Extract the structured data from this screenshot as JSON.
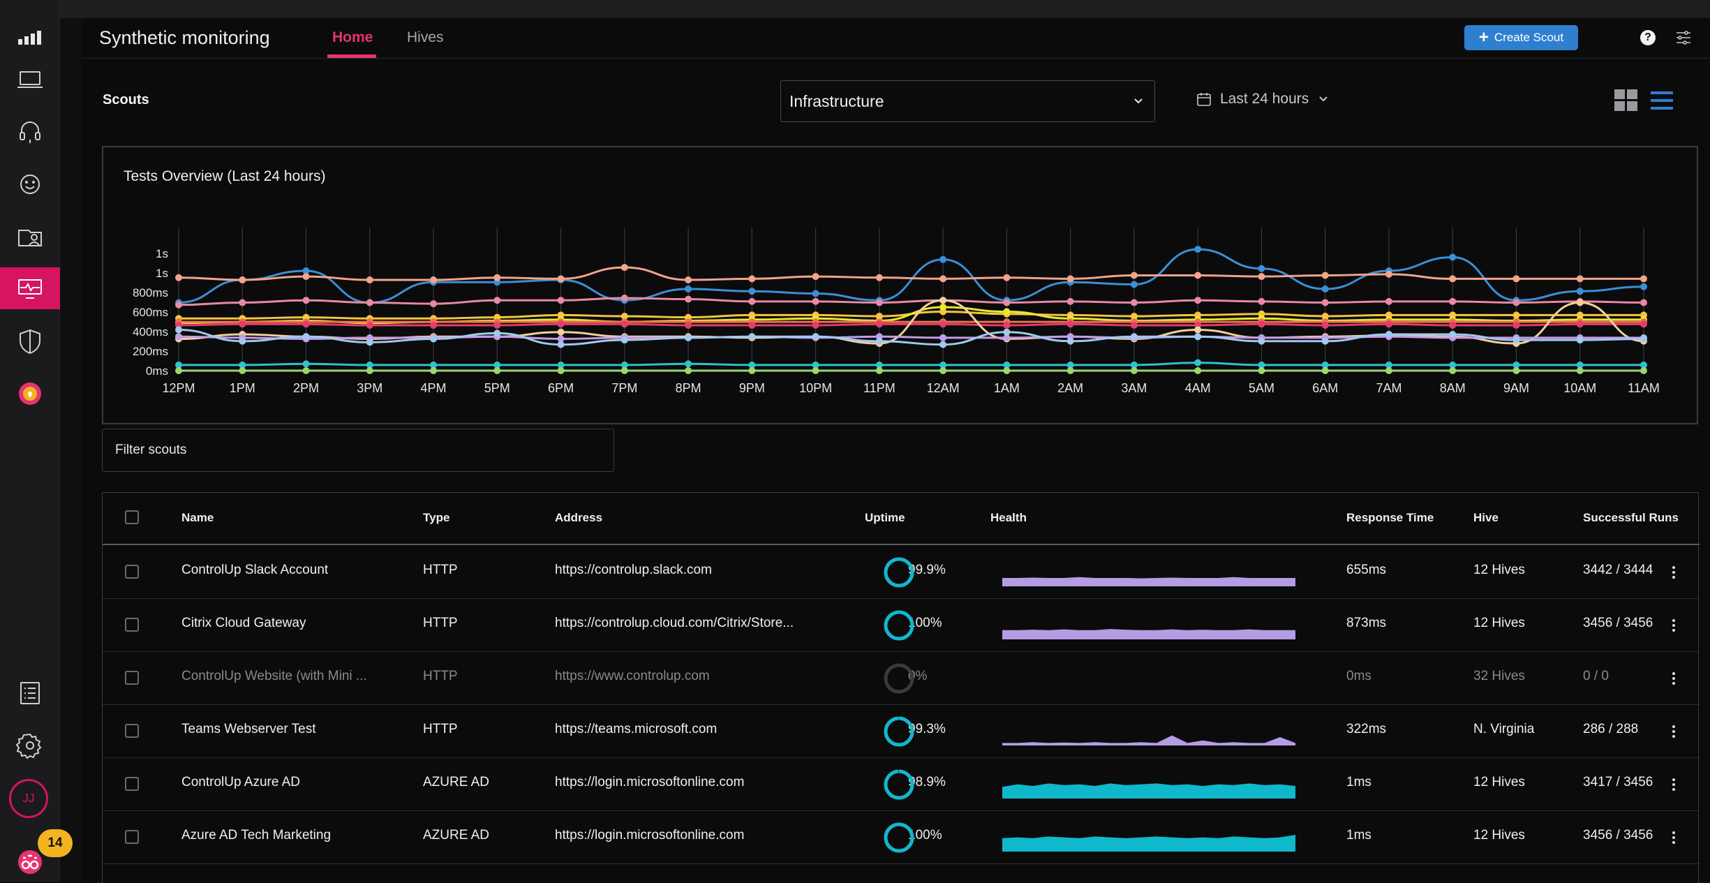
{
  "app": {
    "title": "Synthetic monitoring",
    "tabs": [
      {
        "label": "Home",
        "active": true
      },
      {
        "label": "Hives",
        "active": false
      }
    ],
    "create_label": "Create Scout",
    "help_label": "?"
  },
  "sidebar": {
    "items": [
      "bar-chart-icon",
      "laptop-icon",
      "headset-icon",
      "smiley-icon",
      "user-card-icon",
      "monitor-pulse-icon",
      "shield-icon",
      "lightbulb-icon",
      "list-doc-icon",
      "gear-icon"
    ],
    "active_item": "monitor-pulse-icon",
    "avatar_initials": "JJ",
    "notification_count": "14"
  },
  "toolbar": {
    "section_label": "Scouts",
    "selected_group": "Infrastructure",
    "time_range": "Last 24 hours"
  },
  "chart_data": {
    "type": "line",
    "title": "Tests Overview (Last 24 hours)",
    "x": [
      "12PM",
      "1PM",
      "2PM",
      "3PM",
      "4PM",
      "5PM",
      "6PM",
      "7PM",
      "8PM",
      "9PM",
      "10PM",
      "11PM",
      "12AM",
      "1AM",
      "2AM",
      "3AM",
      "4AM",
      "5AM",
      "6AM",
      "7AM",
      "8AM",
      "9AM",
      "10AM",
      "11AM"
    ],
    "y_tick_labels": [
      "0ms",
      "200ms",
      "400ms",
      "600ms",
      "800ms",
      "1s",
      "1s"
    ],
    "ylim": [
      0,
      1200
    ],
    "grid": "vertical",
    "series": [
      {
        "color": "#3b8fd6",
        "values": [
          600,
          800,
          880,
          600,
          780,
          780,
          800,
          620,
          720,
          700,
          680,
          620,
          980,
          620,
          780,
          760,
          1070,
          900,
          720,
          880,
          1000,
          620,
          700,
          740
        ]
      },
      {
        "color": "#f3a48a",
        "values": [
          820,
          800,
          830,
          800,
          800,
          820,
          810,
          910,
          800,
          810,
          830,
          820,
          810,
          820,
          810,
          840,
          840,
          830,
          840,
          850,
          810,
          810,
          810,
          810
        ]
      },
      {
        "color": "#e98aa2",
        "values": [
          580,
          600,
          620,
          600,
          590,
          620,
          620,
          640,
          630,
          610,
          610,
          600,
          620,
          600,
          610,
          600,
          620,
          610,
          600,
          610,
          610,
          600,
          610,
          600
        ]
      },
      {
        "color": "#f5c540",
        "values": [
          460,
          460,
          470,
          460,
          460,
          470,
          490,
          480,
          470,
          490,
          490,
          480,
          520,
          500,
          490,
          480,
          490,
          500,
          480,
          490,
          490,
          490,
          490,
          490
        ]
      },
      {
        "color": "#e8e832",
        "values": [
          420,
          430,
          440,
          420,
          430,
          440,
          450,
          430,
          440,
          450,
          460,
          440,
          560,
          520,
          460,
          440,
          450,
          460,
          440,
          450,
          450,
          440,
          450,
          450
        ]
      },
      {
        "color": "#f26f4f",
        "values": [
          430,
          430,
          430,
          430,
          430,
          430,
          430,
          430,
          430,
          430,
          430,
          430,
          430,
          430,
          430,
          430,
          430,
          430,
          430,
          430,
          430,
          430,
          430,
          430
        ]
      },
      {
        "color": "#e23d6b",
        "values": [
          400,
          410,
          410,
          400,
          400,
          400,
          410,
          410,
          400,
          400,
          400,
          410,
          410,
          400,
          410,
          400,
          400,
          410,
          400,
          410,
          400,
          400,
          410,
          410
        ]
      },
      {
        "color": "#f1cf9a",
        "values": [
          280,
          320,
          300,
          280,
          300,
          300,
          340,
          300,
          300,
          290,
          300,
          240,
          620,
          280,
          300,
          280,
          360,
          290,
          300,
          310,
          300,
          240,
          600,
          260
        ]
      },
      {
        "color": "#c59be6",
        "values": [
          300,
          290,
          280,
          290,
          290,
          300,
          280,
          290,
          290,
          300,
          290,
          300,
          290,
          290,
          300,
          290,
          300,
          290,
          290,
          300,
          290,
          290,
          290,
          290
        ]
      },
      {
        "color": "#9fc9f0",
        "values": [
          360,
          260,
          300,
          250,
          280,
          330,
          230,
          270,
          290,
          300,
          300,
          260,
          230,
          340,
          260,
          300,
          300,
          260,
          260,
          320,
          320,
          270,
          270,
          280
        ]
      },
      {
        "color": "#2fc2ce",
        "values": [
          50,
          50,
          60,
          50,
          50,
          50,
          50,
          50,
          60,
          50,
          50,
          50,
          50,
          50,
          50,
          50,
          70,
          50,
          50,
          50,
          50,
          50,
          50,
          50
        ]
      },
      {
        "color": "#9bd66b",
        "values": [
          0,
          0,
          0,
          0,
          0,
          0,
          0,
          0,
          0,
          0,
          0,
          0,
          0,
          0,
          0,
          0,
          0,
          0,
          0,
          0,
          0,
          0,
          0,
          0
        ]
      }
    ]
  },
  "filter": {
    "placeholder": "Filter scouts"
  },
  "table": {
    "columns": [
      "Name",
      "Type",
      "Address",
      "Uptime",
      "Health",
      "Response Time",
      "Hive",
      "Successful Runs"
    ],
    "rows": [
      {
        "name": "ControlUp Slack Account",
        "type": "HTTP",
        "address": "https://controlup.slack.com",
        "uptime": "99.9%",
        "uptime_pct": 99.9,
        "response": "655ms",
        "hive": "12 Hives",
        "runs": "3442 / 3444",
        "health_color": "#b49de3",
        "health": [
          0.5,
          0.5,
          0.52,
          0.5,
          0.5,
          0.55,
          0.5,
          0.5,
          0.5,
          0.48,
          0.5,
          0.52,
          0.5,
          0.5,
          0.5,
          0.55,
          0.5,
          0.5,
          0.5,
          0.5
        ],
        "dim": false
      },
      {
        "name": "Citrix Cloud Gateway",
        "type": "HTTP",
        "address": "https://controlup.cloud.com/Citrix/Store...",
        "uptime": "100%",
        "uptime_pct": 100,
        "response": "873ms",
        "hive": "12 Hives",
        "runs": "3456 / 3456",
        "health_color": "#b49de3",
        "health": [
          0.55,
          0.55,
          0.58,
          0.55,
          0.6,
          0.55,
          0.55,
          0.62,
          0.58,
          0.55,
          0.55,
          0.6,
          0.55,
          0.58,
          0.55,
          0.55,
          0.6,
          0.55,
          0.55,
          0.55
        ],
        "dim": false
      },
      {
        "name": "ControlUp Website (with Mini ...",
        "type": "HTTP",
        "address": "https://www.controlup.com",
        "uptime": "0%",
        "uptime_pct": 0,
        "response": "0ms",
        "hive": "32 Hives",
        "runs": "0 / 0",
        "health_color": "#b49de3",
        "health": [],
        "dim": true
      },
      {
        "name": "Teams Webserver Test",
        "type": "HTTP",
        "address": "https://teams.microsoft.com",
        "uptime": "99.3%",
        "uptime_pct": 99.3,
        "response": "322ms",
        "hive": "N. Virginia",
        "runs": "286 / 288",
        "health_color": "#b49de3",
        "health": [
          0.15,
          0.15,
          0.2,
          0.15,
          0.18,
          0.15,
          0.2,
          0.15,
          0.15,
          0.2,
          0.15,
          0.6,
          0.15,
          0.3,
          0.15,
          0.2,
          0.15,
          0.15,
          0.5,
          0.15
        ],
        "dim": false
      },
      {
        "name": "ControlUp Azure AD",
        "type": "AZURE AD",
        "address": "https://login.microsoftonline.com",
        "uptime": "98.9%",
        "uptime_pct": 98.9,
        "response": "1ms",
        "hive": "12 Hives",
        "runs": "3417 / 3456",
        "health_color": "#10b8cc",
        "health": [
          0.7,
          0.85,
          0.75,
          0.9,
          0.8,
          0.85,
          0.75,
          0.9,
          0.8,
          0.85,
          0.9,
          0.8,
          0.85,
          0.75,
          0.85,
          0.8,
          0.9,
          0.8,
          0.85,
          0.75
        ],
        "dim": false
      },
      {
        "name": "Azure AD Tech Marketing",
        "type": "AZURE AD",
        "address": "https://login.microsoftonline.com",
        "uptime": "100%",
        "uptime_pct": 100,
        "response": "1ms",
        "hive": "12 Hives",
        "runs": "3456 / 3456",
        "health_color": "#10b8cc",
        "health": [
          0.8,
          0.85,
          0.8,
          0.9,
          0.85,
          0.8,
          0.9,
          0.85,
          0.8,
          0.85,
          0.9,
          0.85,
          0.8,
          0.85,
          0.8,
          0.9,
          0.85,
          0.8,
          0.85,
          1.0
        ],
        "dim": false
      }
    ]
  }
}
